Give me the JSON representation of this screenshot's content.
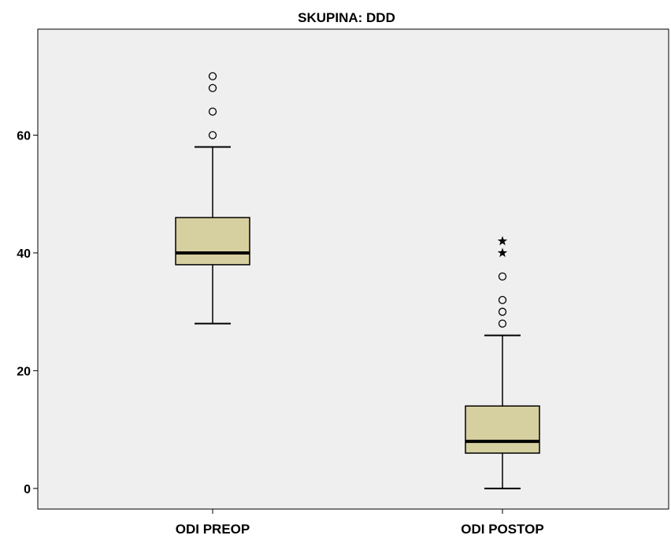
{
  "chart_data": {
    "type": "boxplot",
    "title": "SKUPINA: DDD",
    "xlabel": "",
    "ylabel": "",
    "ylim": [
      -3.5,
      78
    ],
    "yticks": [
      0,
      20,
      40,
      60
    ],
    "grid": false,
    "legend": "none",
    "colors": {
      "plot_background": "#efefef",
      "box_fill": "#d6cfa0",
      "line": "#000000"
    },
    "categories": [
      "ODI PREOP",
      "ODI POSTOP"
    ],
    "boxes": [
      {
        "category": "ODI PREOP",
        "whisker_low": 28,
        "q1": 38,
        "median": 40,
        "q3": 46,
        "whisker_high": 58,
        "outliers": [
          60,
          64,
          68,
          70
        ],
        "extremes": []
      },
      {
        "category": "ODI POSTOP",
        "whisker_low": 0,
        "q1": 6,
        "median": 8,
        "q3": 14,
        "whisker_high": 26,
        "outliers": [
          28,
          30,
          32,
          36
        ],
        "extremes": [
          40,
          42
        ]
      }
    ]
  }
}
